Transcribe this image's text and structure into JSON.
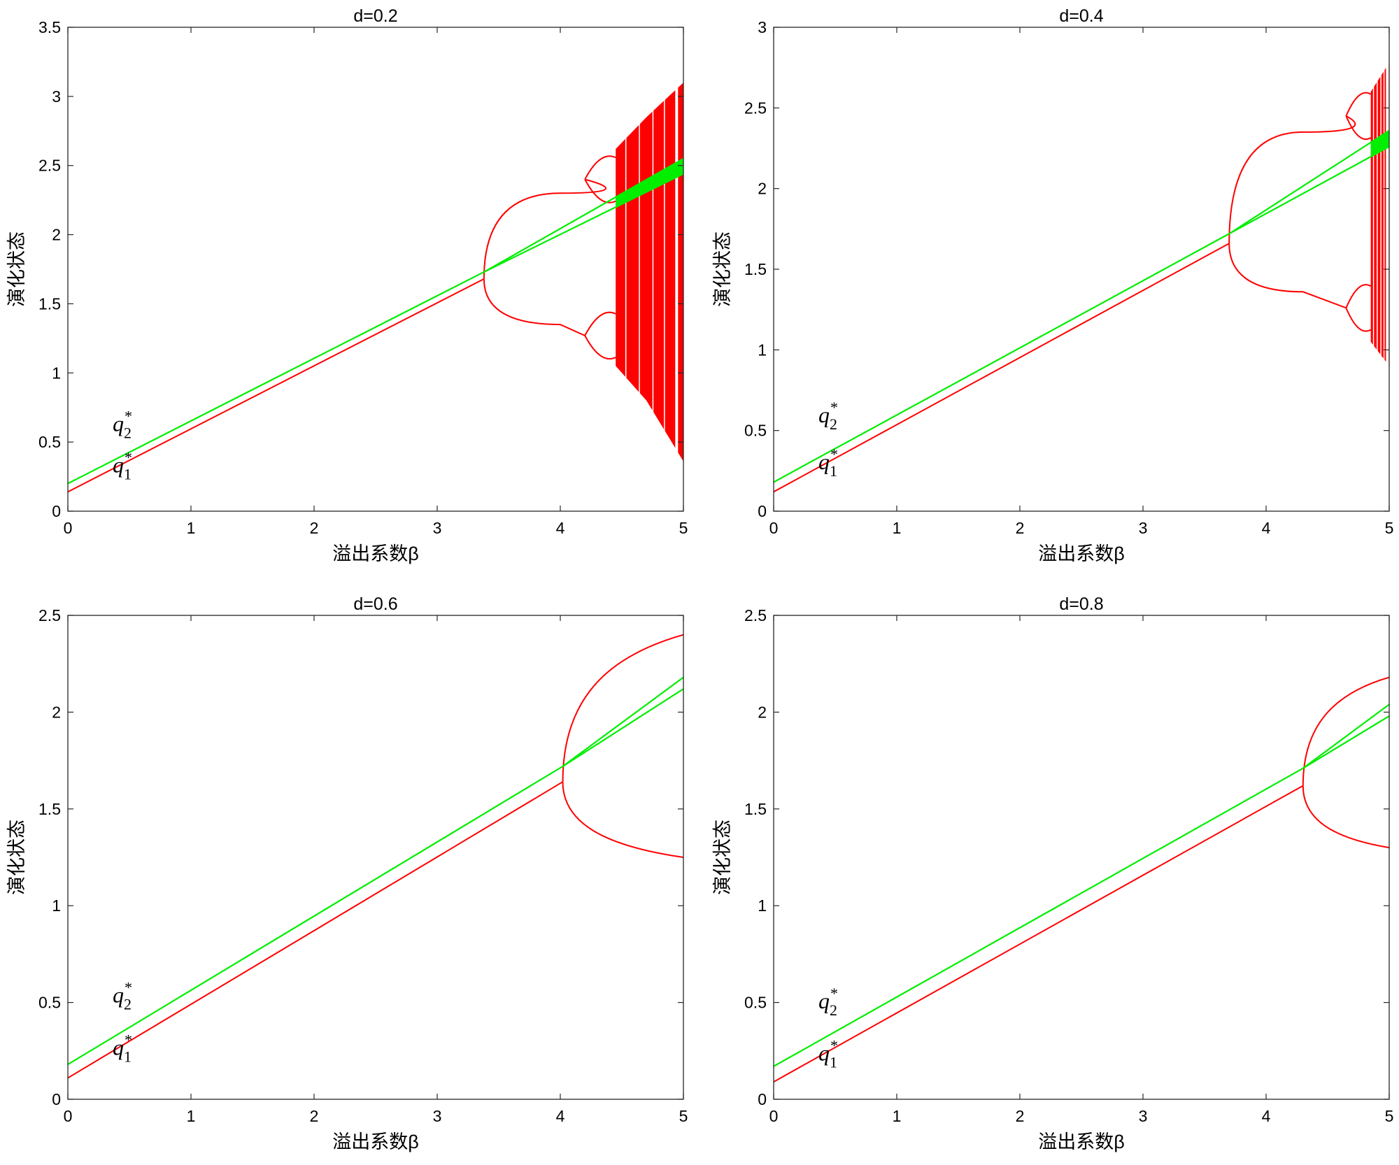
{
  "chart_data": [
    {
      "type": "line",
      "title": "d=0.2",
      "xlabel": "溢出系数β",
      "ylabel": "演化状态",
      "xlim": [
        0,
        5
      ],
      "ylim": [
        0,
        3.5
      ],
      "xticks": [
        "0",
        "1",
        "2",
        "3",
        "4",
        "5"
      ],
      "yticks": [
        "0",
        "0.5",
        "1",
        "1.5",
        "2",
        "2.5",
        "3",
        "3.5"
      ],
      "colors": {
        "q1": "#ff0000",
        "q2": "#00ee00"
      },
      "annotations": [
        {
          "label": "q",
          "sub": "2",
          "sup": "*",
          "x": 0.5,
          "y": 0.58
        },
        {
          "label": "q",
          "sub": "1",
          "sup": "*",
          "x": 0.5,
          "y": 0.28
        }
      ],
      "series": [
        {
          "points": [
            [
              0,
              0.14
            ],
            [
              3.38,
              1.68
            ]
          ],
          "bifurcation": {
            "x": 3.38,
            "y": 1.68,
            "upper": [
              [
                4.0,
                2.3
              ],
              [
                4.2,
                2.4
              ]
            ],
            "lower": [
              [
                4.0,
                1.35
              ],
              [
                4.2,
                1.27
              ]
            ]
          },
          "chaos": {
            "x_start": 4.45,
            "x_end": 5.0,
            "top": [
              [
                4.45,
                2.62
              ],
              [
                4.7,
                2.85
              ],
              [
                5.0,
                3.1
              ]
            ],
            "bottom": [
              [
                4.45,
                1.05
              ],
              [
                4.7,
                0.8
              ],
              [
                5.0,
                0.36
              ]
            ]
          }
        },
        {
          "points": [
            [
              0,
              0.2
            ],
            [
              3.38,
              1.73
            ]
          ],
          "split_to": [
            [
              5.0,
              2.55
            ],
            [
              5.0,
              2.44
            ]
          ]
        }
      ]
    },
    {
      "type": "line",
      "title": "d=0.4",
      "xlabel": "溢出系数β",
      "ylabel": "演化状态",
      "xlim": [
        0,
        5
      ],
      "ylim": [
        0,
        3
      ],
      "xticks": [
        "0",
        "1",
        "2",
        "3",
        "4",
        "5"
      ],
      "yticks": [
        "0",
        "0.5",
        "1",
        "1.5",
        "2",
        "2.5",
        "3"
      ],
      "colors": {
        "q1": "#ff0000",
        "q2": "#00ee00"
      },
      "annotations": [
        {
          "label": "q",
          "sub": "2",
          "sup": "*",
          "x": 0.5,
          "y": 0.55
        },
        {
          "label": "q",
          "sub": "1",
          "sup": "*",
          "x": 0.5,
          "y": 0.26
        }
      ],
      "series": [
        {
          "points": [
            [
              0,
              0.12
            ],
            [
              3.7,
              1.66
            ]
          ],
          "bifurcation": {
            "x": 3.7,
            "y": 1.66,
            "upper": [
              [
                4.3,
                2.35
              ],
              [
                4.65,
                2.45
              ]
            ],
            "lower": [
              [
                4.3,
                1.36
              ],
              [
                4.65,
                1.26
              ]
            ]
          },
          "chaos": {
            "x_start": 4.85,
            "x_end": 5.0,
            "top": [
              [
                4.85,
                2.6
              ],
              [
                5.0,
                2.78
              ]
            ],
            "bottom": [
              [
                4.85,
                1.05
              ],
              [
                5.0,
                0.9
              ]
            ]
          }
        },
        {
          "points": [
            [
              0,
              0.18
            ],
            [
              3.7,
              1.72
            ]
          ],
          "split_to": [
            [
              5.0,
              2.36
            ],
            [
              5.0,
              2.26
            ]
          ]
        }
      ]
    },
    {
      "type": "line",
      "title": "d=0.6",
      "xlabel": "溢出系数β",
      "ylabel": "演化状态",
      "xlim": [
        0,
        5
      ],
      "ylim": [
        0,
        2.5
      ],
      "xticks": [
        "0",
        "1",
        "2",
        "3",
        "4",
        "5"
      ],
      "yticks": [
        "0",
        "0.5",
        "1",
        "1.5",
        "2",
        "2.5"
      ],
      "colors": {
        "q1": "#ff0000",
        "q2": "#00ee00"
      },
      "annotations": [
        {
          "label": "q",
          "sub": "2",
          "sup": "*",
          "x": 0.5,
          "y": 0.5
        },
        {
          "label": "q",
          "sub": "1",
          "sup": "*",
          "x": 0.5,
          "y": 0.23
        }
      ],
      "series": [
        {
          "points": [
            [
              0,
              0.11
            ],
            [
              4.02,
              1.64
            ]
          ],
          "bifurcation": {
            "x": 4.02,
            "y": 1.64,
            "upper_end": [
              5.0,
              2.4
            ],
            "lower_end": [
              5.0,
              1.25
            ]
          }
        },
        {
          "points": [
            [
              0,
              0.18
            ],
            [
              4.02,
              1.72
            ]
          ],
          "split_to": [
            [
              5.0,
              2.18
            ],
            [
              5.0,
              2.12
            ]
          ]
        }
      ]
    },
    {
      "type": "line",
      "title": "d=0.8",
      "xlabel": "溢出系数β",
      "ylabel": "演化状态",
      "xlim": [
        0,
        5
      ],
      "ylim": [
        0,
        2.5
      ],
      "xticks": [
        "0",
        "1",
        "2",
        "3",
        "4",
        "5"
      ],
      "yticks": [
        "0",
        "0.5",
        "1",
        "1.5",
        "2",
        "2.5"
      ],
      "colors": {
        "q1": "#ff0000",
        "q2": "#00ee00"
      },
      "annotations": [
        {
          "label": "q",
          "sub": "2",
          "sup": "*",
          "x": 0.5,
          "y": 0.47
        },
        {
          "label": "q",
          "sub": "1",
          "sup": "*",
          "x": 0.5,
          "y": 0.2
        }
      ],
      "series": [
        {
          "points": [
            [
              0,
              0.09
            ],
            [
              4.3,
              1.62
            ]
          ],
          "bifurcation": {
            "x": 4.3,
            "y": 1.62,
            "upper_end": [
              5.0,
              2.18
            ],
            "lower_end": [
              5.0,
              1.3
            ]
          }
        },
        {
          "points": [
            [
              0,
              0.17
            ],
            [
              4.3,
              1.71
            ]
          ],
          "split_to": [
            [
              5.0,
              2.04
            ],
            [
              5.0,
              1.98
            ]
          ]
        }
      ]
    }
  ]
}
